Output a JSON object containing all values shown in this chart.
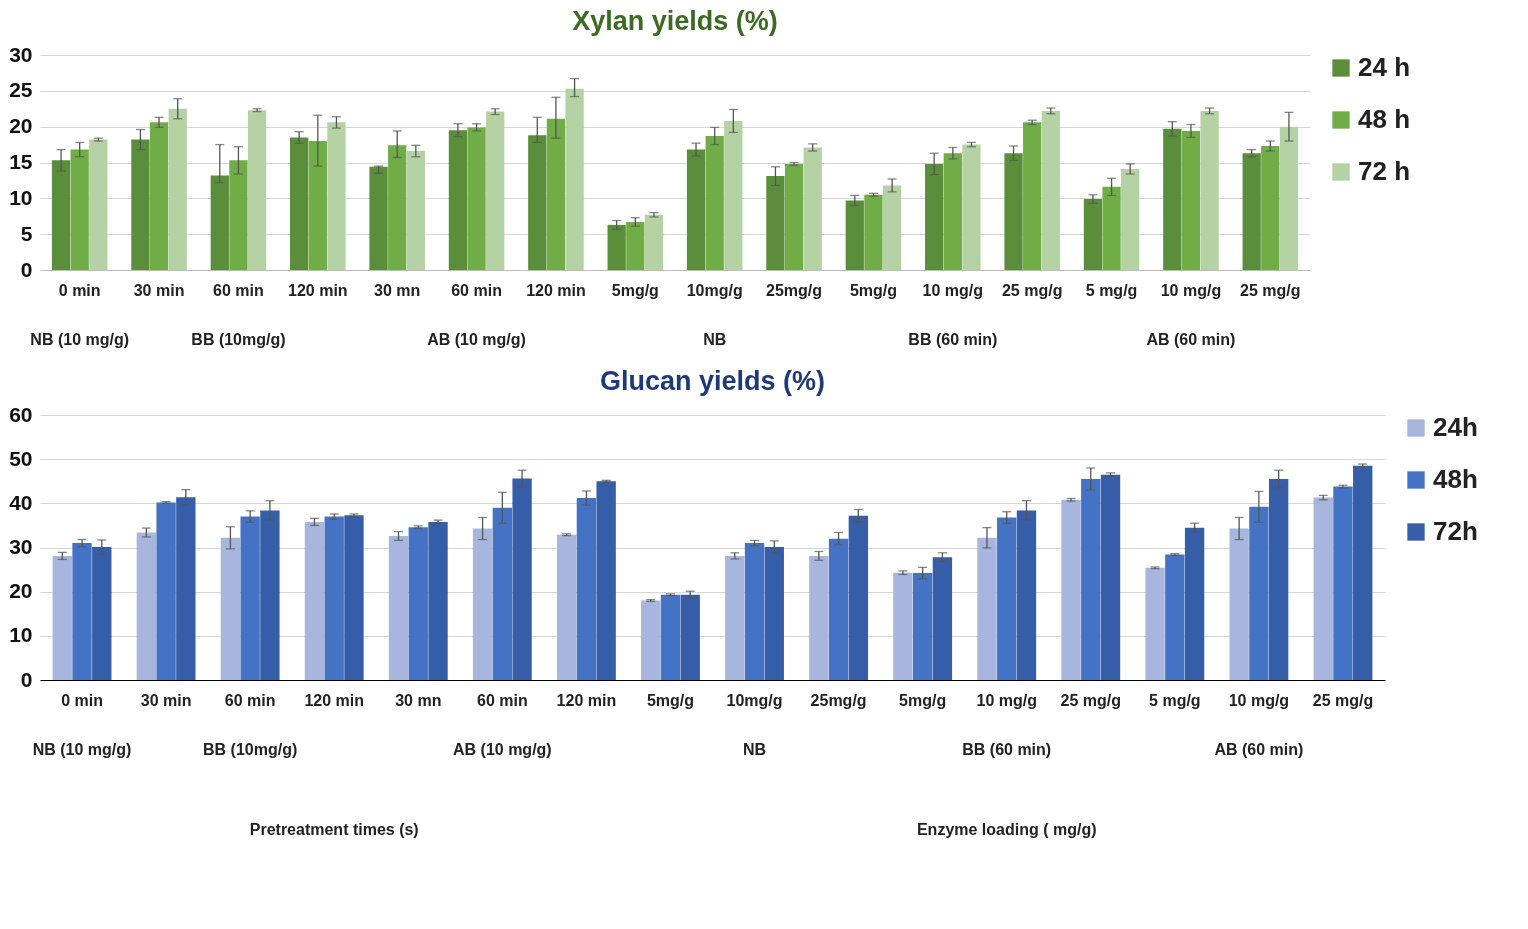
{
  "chart_data": [
    {
      "type": "bar",
      "title": "Xylan  yields (%)",
      "categories": [
        "0 min",
        "30 min",
        "60  min",
        "120  min",
        "30 mn",
        "60  min",
        "120  min",
        "5mg/g",
        "10mg/g",
        "25mg/g",
        "5mg/g",
        "10 mg/g",
        "25 mg/g",
        "5 mg/g",
        "10 mg/g",
        "25 mg/g"
      ],
      "series": [
        {
          "name": "24 h",
          "color": "#5b8e3a",
          "values": [
            15.3,
            18.2,
            13.2,
            18.5,
            14.4,
            19.5,
            18.8,
            6.3,
            16.8,
            13.1,
            9.7,
            14.8,
            16.3,
            9.9,
            19.7,
            16.3
          ],
          "errors": [
            1.5,
            1.4,
            [
              12.2,
              17.5
            ],
            0.8,
            [
              13.5,
              14.5
            ],
            0.9,
            [
              17.8,
              21.3
            ],
            0.6,
            0.9,
            1.3,
            0.7,
            1.5,
            1,
            0.6,
            1,
            0.5
          ]
        },
        {
          "name": "48 h",
          "color": "#70ad47",
          "values": [
            16.8,
            20.6,
            15.3,
            18,
            17.4,
            19.9,
            21.1,
            6.7,
            18.7,
            14.8,
            10.5,
            16.3,
            20.6,
            11.6,
            19.4,
            17.3
          ],
          "errors": [
            1,
            0.7,
            [
              13.4,
              17.2
            ],
            [
              14.5,
              21.6
            ],
            [
              15.7,
              19.4
            ],
            0.5,
            [
              18.4,
              24.1
            ],
            0.6,
            1.2,
            0.2,
            0.2,
            0.8,
            0.3,
            1.2,
            0.9,
            0.7
          ]
        },
        {
          "name": "72 h",
          "color": "#b5d2a4",
          "values": [
            18.2,
            22.5,
            22.3,
            20.6,
            16.6,
            22.1,
            25.3,
            7.7,
            20.8,
            17.1,
            11.8,
            17.5,
            22.2,
            14.1,
            22.2,
            20
          ],
          "errors": [
            0.2,
            1.4,
            0.2,
            0.8,
            0.8,
            0.4,
            [
              24.2,
              26.7
            ],
            0.3,
            1.6,
            0.5,
            0.9,
            0.3,
            0.4,
            0.7,
            0.4,
            2
          ]
        }
      ],
      "ylim": [
        0,
        30
      ],
      "yticks": [
        0,
        5,
        10,
        15,
        20,
        25,
        30
      ],
      "grid": "y",
      "legend": "right",
      "annotations": [
        "NB (10 mg/g)",
        "BB (10mg/g)",
        "AB (10 mg/g)",
        "NB",
        "BB (60 min)",
        "AB (60 min)"
      ]
    },
    {
      "type": "bar",
      "title": "Glucan yields (%)",
      "categories": [
        "0 min",
        "30 min",
        "60  min",
        "120  min",
        "30 mn",
        "60  min",
        "120 min",
        "5mg/g",
        "10mg/g",
        "25mg/g",
        "5mg/g",
        "10 mg/g",
        "25 mg/g",
        "5 mg/g",
        "10 mg/g",
        "25 mg/g"
      ],
      "series": [
        {
          "name": "24h",
          "color": "#a8b5dc",
          "values": [
            28.1,
            33.4,
            32.2,
            35.8,
            32.6,
            34.3,
            32.9,
            18,
            28.1,
            28.1,
            24.3,
            32.2,
            40.8,
            25.4,
            34.3,
            41.3
          ],
          "errors": [
            0.8,
            1,
            2.5,
            0.8,
            1,
            2.5,
            0.2,
            0.2,
            0.7,
            1,
            0.4,
            2.3,
            0.3,
            0.2,
            2.5,
            0.5
          ]
        },
        {
          "name": "48h",
          "color": "#4472c4",
          "values": [
            31,
            40.2,
            37,
            37,
            34.6,
            39,
            41.2,
            19.3,
            31,
            32,
            24.2,
            36.8,
            45.5,
            28.4,
            39.2,
            43.8
          ],
          "errors": [
            0.8,
            0.2,
            1.3,
            0.6,
            0.3,
            3.5,
            1.6,
            0.2,
            0.6,
            1.4,
            1.3,
            1.3,
            2.5,
            0.2,
            3.5,
            0.3
          ]
        },
        {
          "name": "72h",
          "color": "#365ea8",
          "values": [
            30.1,
            41.4,
            38.4,
            37.3,
            35.8,
            45.6,
            45,
            19.3,
            30.1,
            37.2,
            27.8,
            38.4,
            46.5,
            34.5,
            45.5,
            48.5
          ],
          "errors": [
            1.6,
            1.7,
            2.2,
            0.3,
            0.4,
            1.9,
            0.2,
            0.8,
            1.4,
            1.4,
            1,
            2.2,
            0.4,
            1,
            2,
            0.4
          ]
        }
      ],
      "ylim": [
        0,
        60
      ],
      "yticks": [
        0,
        10,
        20,
        30,
        40,
        50,
        60
      ],
      "grid": "y",
      "legend": "right",
      "annotations": [
        "NB (10 mg/g)",
        "BB (10mg/g)",
        "AB (10 mg/g)",
        "NB",
        "BB (60 min)",
        "AB (60 min)",
        "Pretreatment times (s)",
        "Enzyme loading ( mg/g)"
      ]
    }
  ]
}
